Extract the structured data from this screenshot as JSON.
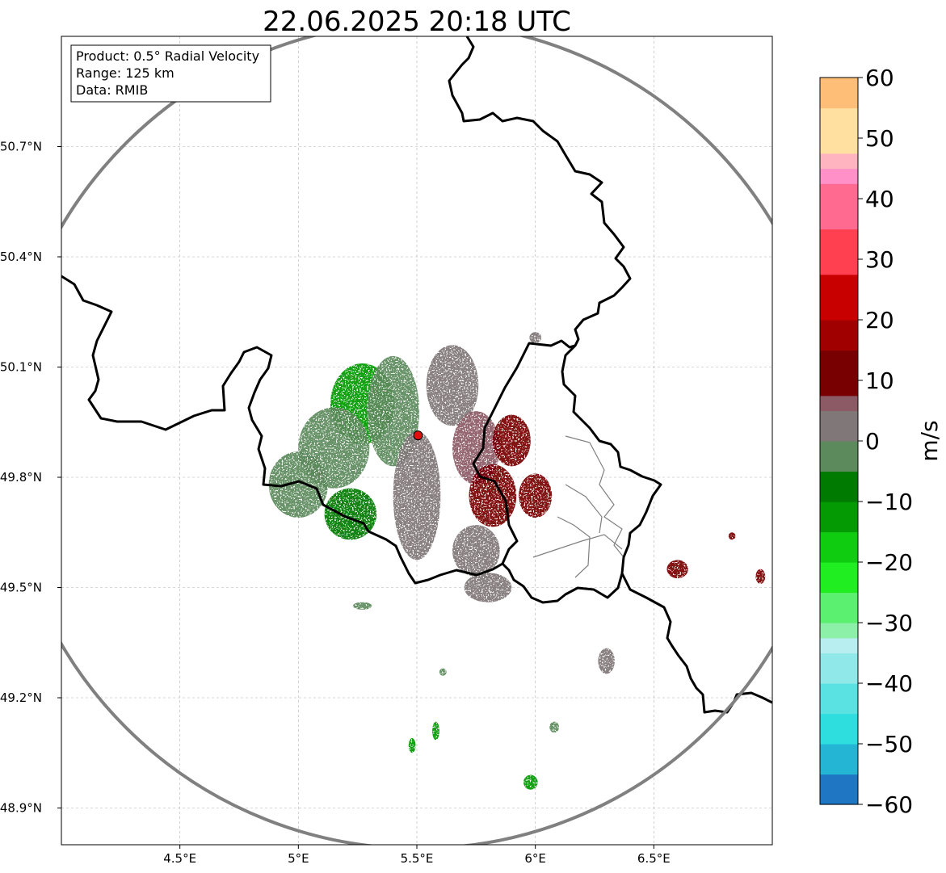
{
  "title": "22.06.2025 20:18 UTC",
  "info_box": {
    "product": "Product: 0.5° Radial Velocity",
    "range": "Range: 125 km",
    "data": "Data: RMIB"
  },
  "map": {
    "lon_range": [
      4.0,
      7.0
    ],
    "lat_range": [
      48.8,
      51.0
    ],
    "x_ticks": [
      {
        "lon": 4.5,
        "label": "4.5°E"
      },
      {
        "lon": 5.0,
        "label": "5°E"
      },
      {
        "lon": 5.5,
        "label": "5.5°E"
      },
      {
        "lon": 6.0,
        "label": "6°E"
      },
      {
        "lon": 6.5,
        "label": "6.5°E"
      }
    ],
    "y_ticks": [
      {
        "lat": 50.7,
        "label": "50.7°N"
      },
      {
        "lat": 50.4,
        "label": "50.4°N"
      },
      {
        "lat": 50.1,
        "label": "50.1°N"
      },
      {
        "lat": 49.8,
        "label": "49.8°N"
      },
      {
        "lat": 49.5,
        "label": "49.5°N"
      },
      {
        "lat": 49.2,
        "label": "49.2°N"
      },
      {
        "lat": 48.9,
        "label": "48.9°N"
      }
    ],
    "gridlines": true,
    "radar_site": {
      "lon": 5.505,
      "lat": 49.914
    },
    "range_ring_km": 125
  },
  "colorbar": {
    "label": "m/s",
    "min": -60,
    "max": 60,
    "ticks": [
      {
        "value": 60,
        "label": "60"
      },
      {
        "value": 50,
        "label": "50"
      },
      {
        "value": 40,
        "label": "40"
      },
      {
        "value": 30,
        "label": "30"
      },
      {
        "value": 20,
        "label": "20"
      },
      {
        "value": 10,
        "label": "10"
      },
      {
        "value": 0,
        "label": "0"
      },
      {
        "value": -10,
        "label": "−10"
      },
      {
        "value": -20,
        "label": "−20"
      },
      {
        "value": -30,
        "label": "−30"
      },
      {
        "value": -40,
        "label": "−40"
      },
      {
        "value": -50,
        "label": "−50"
      },
      {
        "value": -60,
        "label": "−60"
      }
    ],
    "stops": [
      {
        "value": -60,
        "color": "#1f77c4"
      },
      {
        "value": -55,
        "color": "#24b4d4"
      },
      {
        "value": -50,
        "color": "#2edede"
      },
      {
        "value": -45,
        "color": "#5ae2e2"
      },
      {
        "value": -40,
        "color": "#90e8e8"
      },
      {
        "value": -35,
        "color": "#b8eef0"
      },
      {
        "value": -32,
        "color": "#8cf0a8"
      },
      {
        "value": -30,
        "color": "#5cf070"
      },
      {
        "value": -25,
        "color": "#20ee20"
      },
      {
        "value": -20,
        "color": "#10cc10"
      },
      {
        "value": -15,
        "color": "#049a04"
      },
      {
        "value": -10,
        "color": "#007a00"
      },
      {
        "value": -6,
        "color": "#006400"
      },
      {
        "value": -5,
        "color": "#5c8a5c"
      },
      {
        "value": 0,
        "color": "#807878"
      },
      {
        "value": 5,
        "color": "#8c5a64"
      },
      {
        "value": 8,
        "color": "#844048"
      },
      {
        "value": 8.1,
        "color": "#780000"
      },
      {
        "value": 15,
        "color": "#a00000"
      },
      {
        "value": 20,
        "color": "#c80000"
      },
      {
        "value": 28,
        "color": "#f00000"
      },
      {
        "value": 28.1,
        "color": "#ff4050"
      },
      {
        "value": 35,
        "color": "#ff6a90"
      },
      {
        "value": 42,
        "color": "#ff90c8"
      },
      {
        "value": 45,
        "color": "#ffb4c0"
      },
      {
        "value": 48,
        "color": "#ffe0a0"
      },
      {
        "value": 55,
        "color": "#ffbe78"
      },
      {
        "value": 60,
        "color": "#ff9a50"
      }
    ]
  },
  "colors": {
    "country_border": "#000000",
    "admin_border": "#808080",
    "range_ring": "#808080",
    "radar_site": "#e01010"
  },
  "radar_echoes": [
    {
      "lon": 5.27,
      "lat": 50.0,
      "w": 0.27,
      "h": 0.22,
      "v": -11
    },
    {
      "lon": 5.15,
      "lat": 49.88,
      "w": 0.3,
      "h": 0.22,
      "v": -5
    },
    {
      "lon": 5.4,
      "lat": 49.98,
      "w": 0.22,
      "h": 0.3,
      "v": -3
    },
    {
      "lon": 5.0,
      "lat": 49.78,
      "w": 0.25,
      "h": 0.18,
      "v": -4
    },
    {
      "lon": 5.22,
      "lat": 49.7,
      "w": 0.22,
      "h": 0.14,
      "v": -10
    },
    {
      "lon": 5.5,
      "lat": 49.75,
      "w": 0.2,
      "h": 0.35,
      "v": 0
    },
    {
      "lon": 5.65,
      "lat": 50.05,
      "w": 0.22,
      "h": 0.22,
      "v": 3
    },
    {
      "lon": 5.75,
      "lat": 49.88,
      "w": 0.2,
      "h": 0.2,
      "v": 5
    },
    {
      "lon": 5.82,
      "lat": 49.75,
      "w": 0.2,
      "h": 0.17,
      "v": 11
    },
    {
      "lon": 5.9,
      "lat": 49.9,
      "w": 0.16,
      "h": 0.14,
      "v": 11
    },
    {
      "lon": 5.75,
      "lat": 49.6,
      "w": 0.2,
      "h": 0.14,
      "v": 4
    },
    {
      "lon": 5.8,
      "lat": 49.5,
      "w": 0.2,
      "h": 0.08,
      "v": 3
    },
    {
      "lon": 6.0,
      "lat": 49.75,
      "w": 0.14,
      "h": 0.12,
      "v": 11
    },
    {
      "lon": 6.6,
      "lat": 49.55,
      "w": 0.09,
      "h": 0.05,
      "v": 11
    },
    {
      "lon": 6.83,
      "lat": 49.64,
      "w": 0.03,
      "h": 0.02,
      "v": 11
    },
    {
      "lon": 6.95,
      "lat": 49.53,
      "w": 0.04,
      "h": 0.04,
      "v": 11
    },
    {
      "lon": 6.3,
      "lat": 49.3,
      "w": 0.07,
      "h": 0.07,
      "v": 2
    },
    {
      "lon": 6.08,
      "lat": 49.12,
      "w": 0.04,
      "h": 0.03,
      "v": -5
    },
    {
      "lon": 5.98,
      "lat": 48.97,
      "w": 0.06,
      "h": 0.04,
      "v": -11
    },
    {
      "lon": 5.58,
      "lat": 49.11,
      "w": 0.03,
      "h": 0.05,
      "v": -11
    },
    {
      "lon": 5.48,
      "lat": 49.07,
      "w": 0.03,
      "h": 0.04,
      "v": -11
    },
    {
      "lon": 5.61,
      "lat": 49.27,
      "w": 0.03,
      "h": 0.02,
      "v": -5
    },
    {
      "lon": 5.27,
      "lat": 49.45,
      "w": 0.08,
      "h": 0.02,
      "v": -3
    },
    {
      "lon": 6.0,
      "lat": 50.18,
      "w": 0.05,
      "h": 0.03,
      "v": 3
    }
  ]
}
